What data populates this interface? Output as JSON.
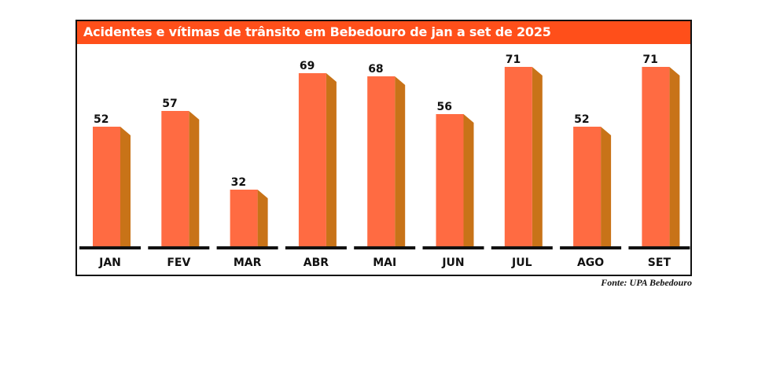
{
  "chart_data": {
    "type": "bar",
    "title": "Acidentes e vítimas de trânsito em Bebedouro de jan a set de 2025",
    "categories": [
      "JAN",
      "FEV",
      "MAR",
      "ABR",
      "MAI",
      "JUN",
      "JUL",
      "AGO",
      "SET"
    ],
    "values": [
      52,
      57,
      32,
      69,
      68,
      56,
      71,
      52,
      71
    ],
    "data_labels": [
      "52",
      "57",
      "32",
      "69",
      "68",
      "56",
      "71",
      "52",
      "71"
    ],
    "xlabel": "",
    "ylabel": "",
    "ylim": [
      14,
      72
    ],
    "grid": false,
    "legend": "none",
    "source": "Fonte: UPA Bebedouro"
  },
  "colors": {
    "title_bar": "#ff4f1a",
    "bar_front": "#ff6b42",
    "bar_side": "#c87318",
    "baseline": "#111111"
  }
}
